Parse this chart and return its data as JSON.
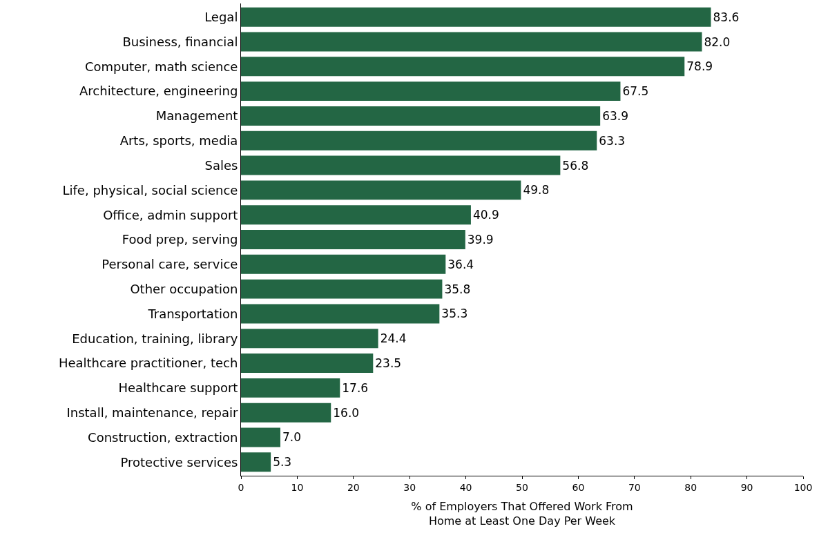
{
  "chart_data": {
    "type": "bar",
    "orientation": "horizontal",
    "xlabel": "% of Employers That Offered Work From\nHome at Least One Day Per Week",
    "categories": [
      "Legal",
      "Business, financial",
      "Computer, math science",
      "Architecture, engineering",
      "Management",
      "Arts, sports, media",
      "Sales",
      "Life, physical, social science",
      "Office, admin support",
      "Food prep, serving",
      "Personal care, service",
      "Other occupation",
      "Transportation",
      "Education, training, library",
      "Healthcare practitioner, tech",
      "Healthcare support",
      "Install, maintenance, repair",
      "Construction, extraction",
      "Protective services"
    ],
    "values": [
      83.6,
      82.0,
      78.9,
      67.5,
      63.9,
      63.3,
      56.8,
      49.8,
      40.9,
      39.9,
      36.4,
      35.8,
      35.3,
      24.4,
      23.5,
      17.6,
      16.0,
      7.0,
      5.3
    ],
    "value_labels": [
      "83.6",
      "82.0",
      "78.9",
      "67.5",
      "63.9",
      "63.3",
      "56.8",
      "49.8",
      "40.9",
      "39.9",
      "36.4",
      "35.8",
      "35.3",
      "24.4",
      "23.5",
      "17.6",
      "16.0",
      "7.0",
      "5.3"
    ],
    "color": "#236644",
    "xlim": [
      0,
      100
    ],
    "xticks": [
      0,
      10,
      20,
      30,
      40,
      50,
      60,
      70,
      80,
      90,
      100
    ]
  }
}
